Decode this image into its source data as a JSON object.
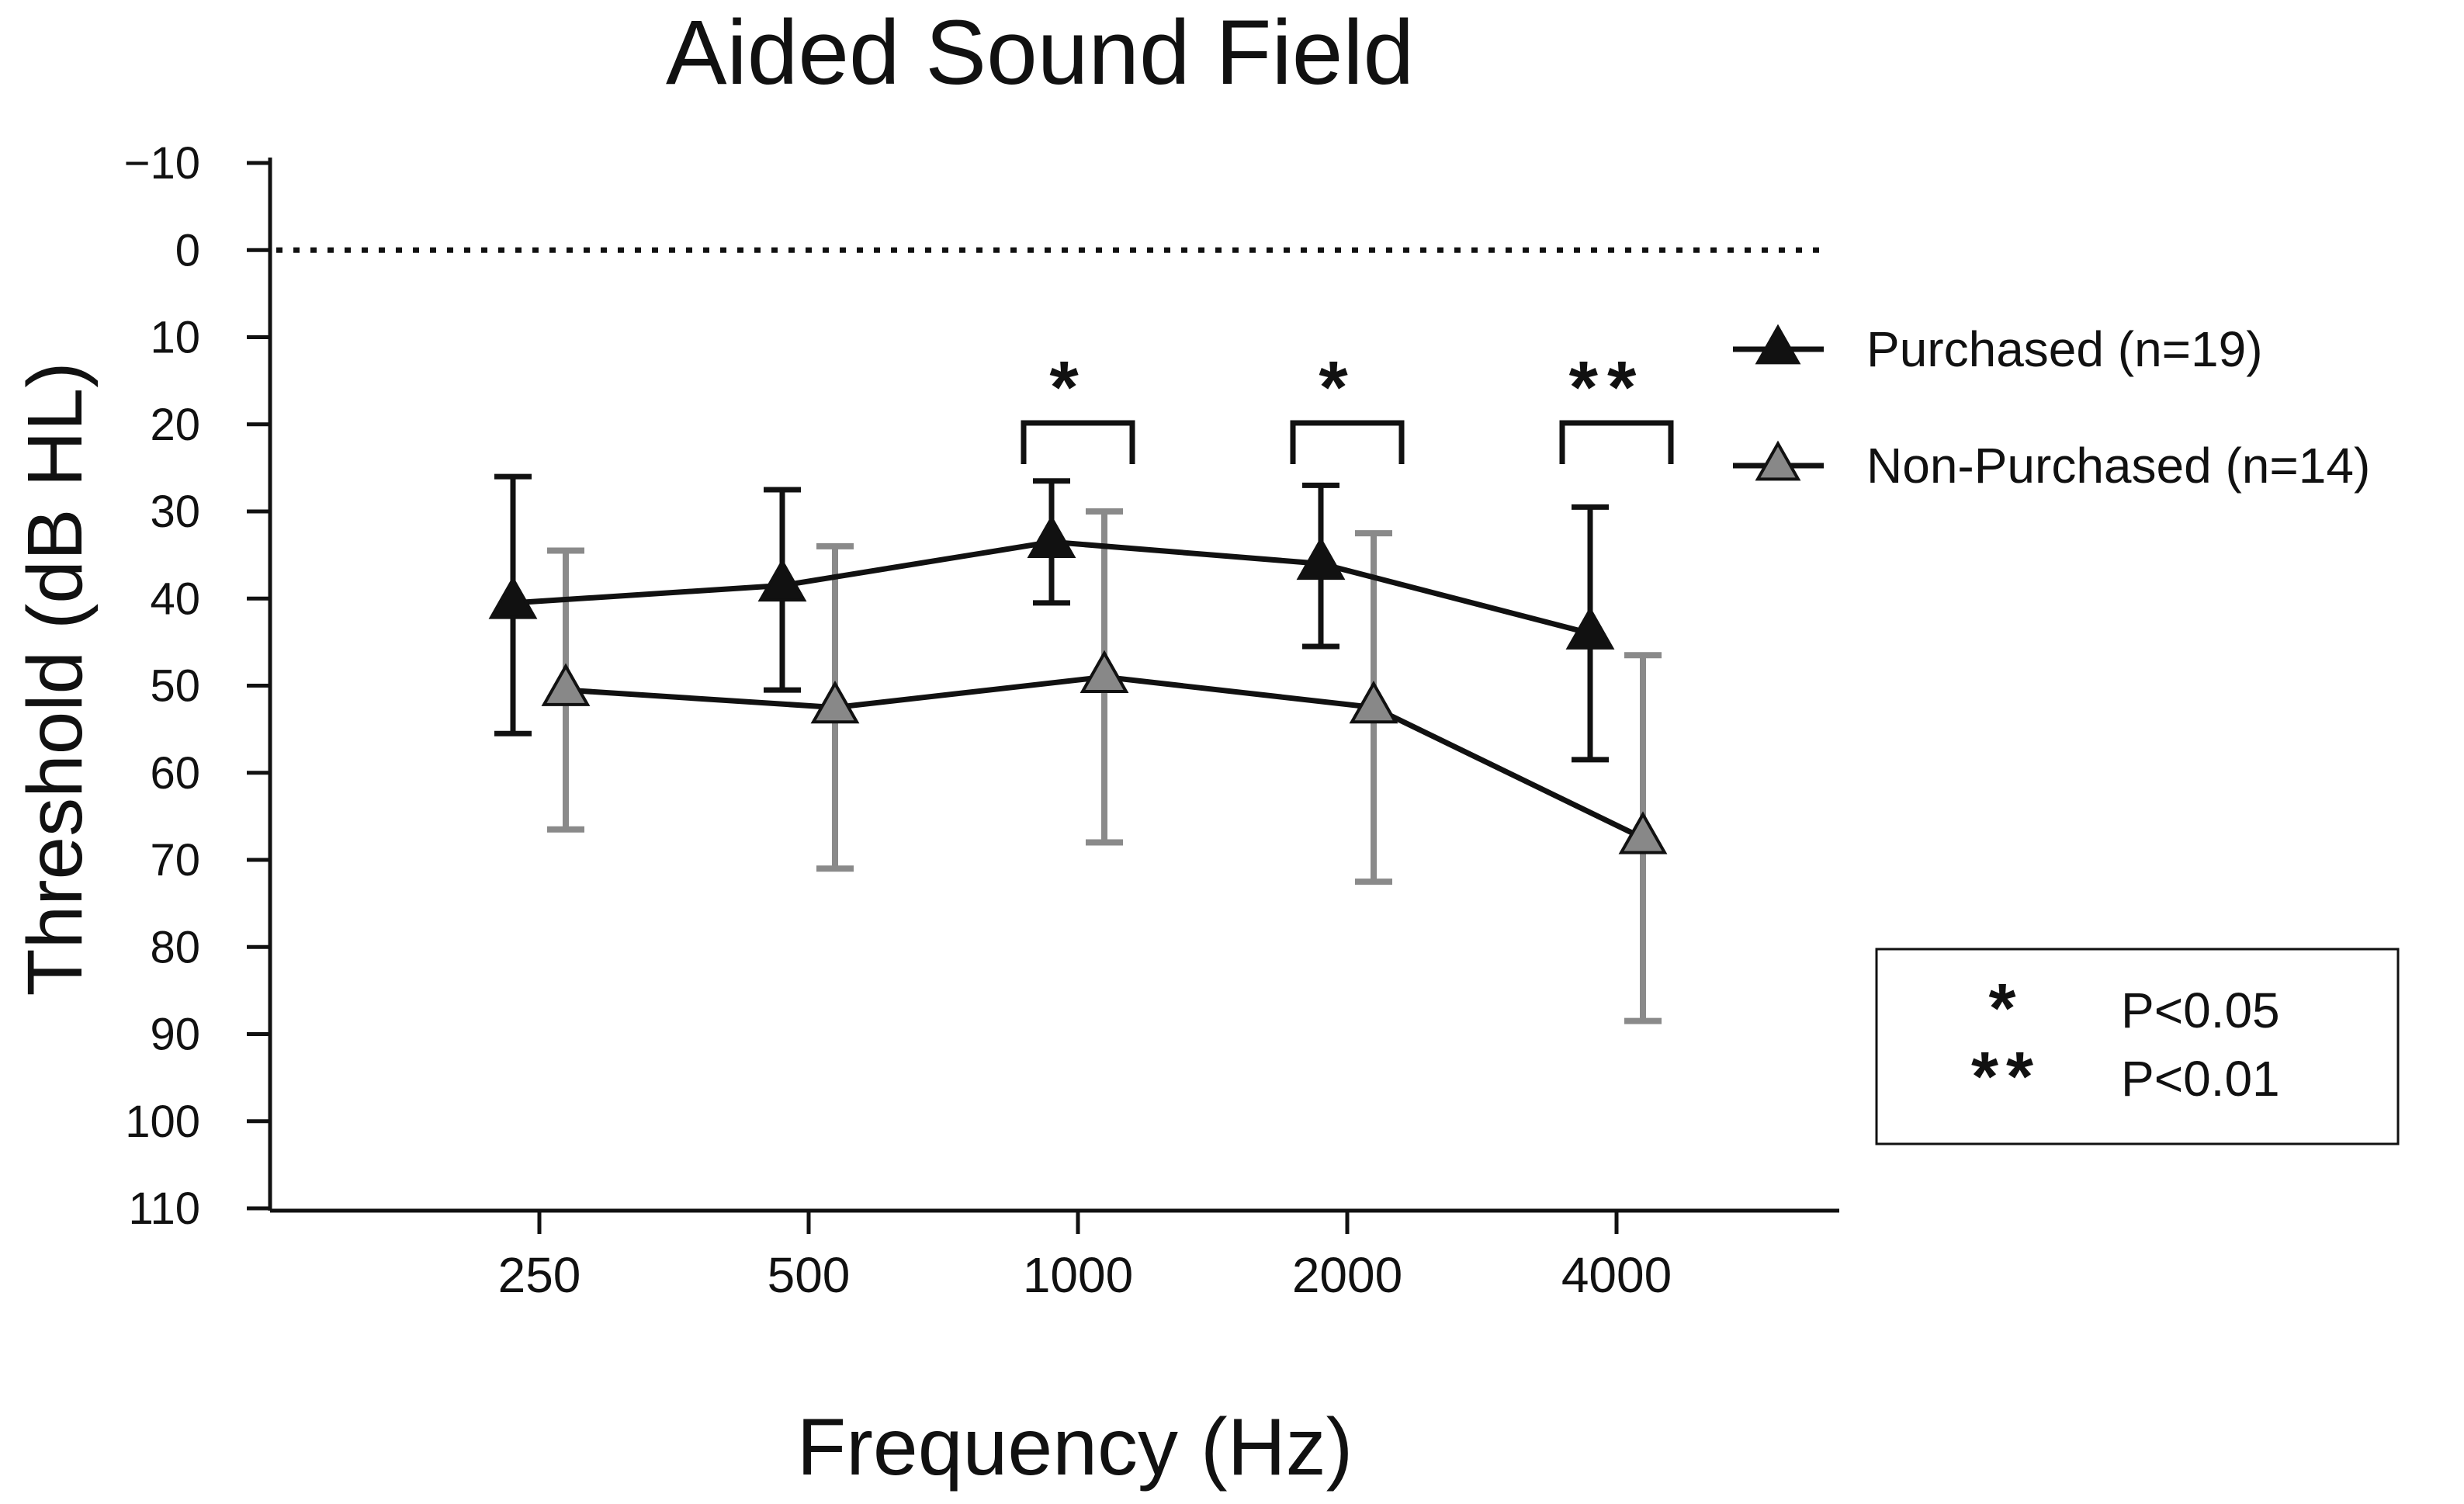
{
  "chart_data": {
    "type": "line",
    "title": "Aided Sound Field",
    "xlabel": "Frequency (Hz)",
    "ylabel": "Threshold (dB HL)",
    "ylim": [
      -10,
      110
    ],
    "y_inverted": true,
    "y_ticks": [
      -10,
      0,
      10,
      20,
      30,
      40,
      50,
      60,
      70,
      80,
      90,
      100,
      110
    ],
    "y_tick_labels": [
      "−10",
      "0",
      "10",
      "20",
      "30",
      "40",
      "50",
      "60",
      "70",
      "80",
      "90",
      "100",
      "110"
    ],
    "categories": [
      "250",
      "500",
      "1000",
      "2000",
      "4000"
    ],
    "reference_line": 0,
    "series": [
      {
        "name": "Purchased (n=19)",
        "color": "#111111",
        "marker_color": "#111111",
        "error_color": "#111111",
        "values": [
          40.5,
          38.5,
          33.5,
          36,
          44
        ],
        "err_low": [
          26,
          27.5,
          26.5,
          27,
          29.5
        ],
        "err_high": [
          55.5,
          50.5,
          40.5,
          45.5,
          58.5
        ]
      },
      {
        "name": "Non-Purchased (n=14)",
        "color": "#111111",
        "marker_color": "#888888",
        "error_color": "#8a8a8a",
        "values": [
          50.5,
          52.5,
          49,
          52.5,
          67.5
        ],
        "err_low": [
          34.5,
          34,
          30,
          32.5,
          46.5
        ],
        "err_high": [
          66.5,
          71,
          68,
          72.5,
          88.5
        ]
      }
    ],
    "significance": [
      {
        "category": "1000",
        "label": "*"
      },
      {
        "category": "2000",
        "label": "*"
      },
      {
        "category": "4000",
        "label": "**"
      }
    ],
    "significance_key": [
      {
        "symbol": "*",
        "label": "P<0.05"
      },
      {
        "symbol": "**",
        "label": "P<0.01"
      }
    ],
    "legend_position": "top-right"
  }
}
